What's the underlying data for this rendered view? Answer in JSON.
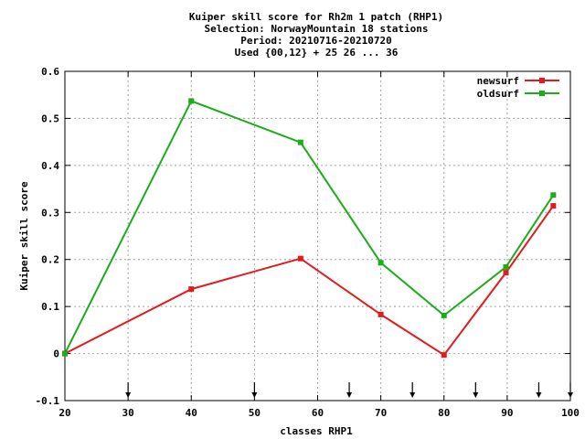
{
  "chart_data": {
    "type": "line",
    "title_lines": [
      "Kuiper skill score  for Rh2m 1 patch (RHP1)",
      "Selection: NorwayMountain     18 stations",
      "Period: 20210716-20210720",
      "Used {00,12} + 25 26 ... 36"
    ],
    "xlabel": "classes RHP1",
    "ylabel": "Kuiper skill score",
    "xlim": [
      20,
      100
    ],
    "ylim": [
      -0.1,
      0.6
    ],
    "xticks": [
      "20",
      "30",
      "40",
      "50",
      "60",
      "70",
      "80",
      "90",
      "100"
    ],
    "yticks": [
      "-0.1",
      "0",
      "0.1",
      "0.2",
      "0.3",
      "0.4",
      "0.5",
      "0.6"
    ],
    "grid": true,
    "legend_position": "top-right",
    "series": [
      {
        "name": "newsurf",
        "color": "#e41a1c",
        "x": [
          20,
          40,
          57.3,
          70,
          80,
          89.8,
          97.3
        ],
        "y": [
          0.0,
          0.137,
          0.202,
          0.083,
          -0.003,
          0.172,
          0.314
        ]
      },
      {
        "name": "oldsurf",
        "color": "#1aad1a",
        "x": [
          20,
          40,
          57.3,
          70,
          80,
          89.8,
          97.3
        ],
        "y": [
          0.0,
          0.537,
          0.449,
          0.193,
          0.081,
          0.184,
          0.337
        ]
      }
    ],
    "arrow_markers_x": [
      30,
      50,
      65,
      75,
      85,
      95,
      100
    ]
  }
}
